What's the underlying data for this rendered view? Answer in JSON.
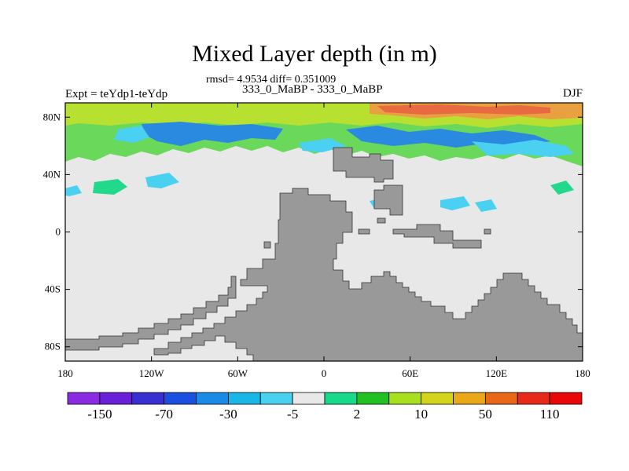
{
  "title": "Mixed Layer depth (in m)",
  "stats": "rmsd= 4.9534 diff= 0.351009",
  "cases": "333_0_MaBP - 333_0_MaBP",
  "expt": "Expt = teYdp1-teYdp",
  "season": "DJF",
  "colors": {
    "land": "#999999",
    "no_change": "#e8e8e8",
    "frame": "#000000"
  },
  "map": {
    "projection": "cylindrical equidistant",
    "lon_range": [
      -180,
      180
    ],
    "lat_range": [
      -90,
      90
    ],
    "xticks": [
      {
        "lon": -180,
        "label": "180"
      },
      {
        "lon": -120,
        "label": "120W"
      },
      {
        "lon": -60,
        "label": "60W"
      },
      {
        "lon": 0,
        "label": "0"
      },
      {
        "lon": 60,
        "label": "60E"
      },
      {
        "lon": 120,
        "label": "120E"
      },
      {
        "lon": 180,
        "label": "180"
      }
    ],
    "yticks": [
      {
        "lat": 80,
        "label": "80N"
      },
      {
        "lat": 40,
        "label": "40N"
      },
      {
        "lat": 0,
        "label": "0"
      },
      {
        "lat": -40,
        "label": "40S"
      },
      {
        "lat": -80,
        "label": "80S"
      }
    ]
  },
  "colorbar": {
    "colors": [
      "#8a2be2",
      "#6a1fd9",
      "#3a2fd0",
      "#1a50e0",
      "#1a8ae6",
      "#19b6e6",
      "#4ad0f0",
      "#e8e8e8",
      "#18d88a",
      "#22c022",
      "#a8e020",
      "#d4d41c",
      "#e8a818",
      "#e86818",
      "#e82818",
      "#e80808"
    ],
    "labels": [
      {
        "boundary": 1,
        "text": "-150"
      },
      {
        "boundary": 3,
        "text": "-70"
      },
      {
        "boundary": 5,
        "text": "-30"
      },
      {
        "boundary": 7,
        "text": "-5"
      },
      {
        "boundary": 9,
        "text": "2"
      },
      {
        "boundary": 11,
        "text": "10"
      },
      {
        "boundary": 13,
        "text": "50"
      },
      {
        "boundary": 15,
        "text": "110"
      }
    ]
  }
}
